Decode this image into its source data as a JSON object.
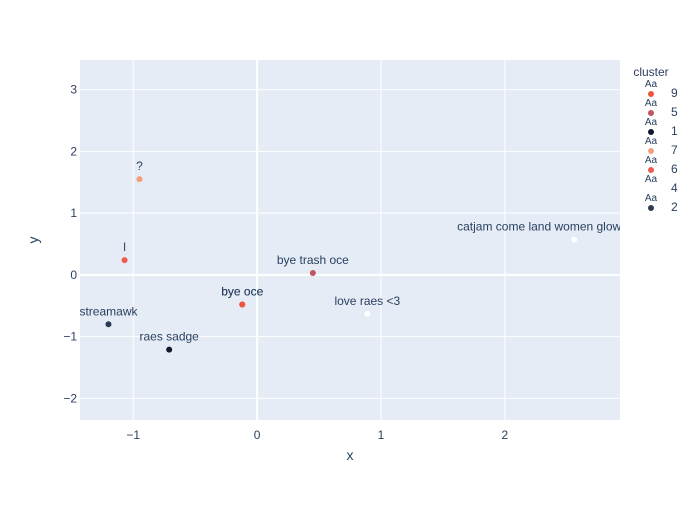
{
  "chart_data": {
    "type": "scatter",
    "title": "",
    "xlabel": "x",
    "ylabel": "y",
    "xlim": [
      -1.43,
      2.93
    ],
    "ylim": [
      -2.35,
      3.48
    ],
    "x_ticks": [
      -1,
      0,
      1,
      2
    ],
    "y_ticks": [
      -2,
      -1,
      0,
      1,
      2,
      3
    ],
    "x_tick_labels": [
      "−1",
      "0",
      "1",
      "2"
    ],
    "y_tick_labels": [
      "−2",
      "−1",
      "0",
      "1",
      "2",
      "3"
    ],
    "grid": true,
    "zeroline": true,
    "legend": {
      "title": "cluster",
      "placement": "right",
      "symbol_text": "Aa",
      "entries": [
        {
          "name": "9",
          "color": "#ef553b"
        },
        {
          "name": "5",
          "color": "#c0575f"
        },
        {
          "name": "1",
          "color": "#0f1b2d"
        },
        {
          "name": "7",
          "color": "#f2a07b"
        },
        {
          "name": "6",
          "color": "#ef5b4f"
        },
        {
          "name": "4",
          "color": "#ffffff"
        },
        {
          "name": "2",
          "color": "#2f3b55"
        }
      ]
    },
    "series": [
      {
        "name": "9",
        "color": "#ef553b",
        "points": [
          {
            "x": -0.12,
            "y": -0.48,
            "label": "bye oce"
          },
          {
            "x": -0.12,
            "y": -0.48,
            "label": "bye oce"
          }
        ]
      },
      {
        "name": "5",
        "color": "#c0575f",
        "points": [
          {
            "x": 0.45,
            "y": 0.03,
            "label": "bye trash oce"
          }
        ]
      },
      {
        "name": "1",
        "color": "#0f1b2d",
        "points": [
          {
            "x": -0.71,
            "y": -1.21,
            "label": "raes sadge"
          }
        ]
      },
      {
        "name": "7",
        "color": "#f2a07b",
        "points": [
          {
            "x": -0.95,
            "y": 1.55,
            "label": "?"
          }
        ]
      },
      {
        "name": "6",
        "color": "#ef5b4f",
        "points": [
          {
            "x": -1.07,
            "y": 0.24,
            "label": "l"
          }
        ]
      },
      {
        "name": "4",
        "color": "#ffffff",
        "points": [
          {
            "x": 2.56,
            "y": 0.57,
            "label": "catjam come land women glow men plunder"
          },
          {
            "x": 0.89,
            "y": -0.63,
            "label": "love raes <3"
          }
        ]
      },
      {
        "name": "2",
        "color": "#2f3b55",
        "points": [
          {
            "x": -1.2,
            "y": -0.8,
            "label": "streamawk"
          }
        ]
      }
    ]
  },
  "colors": {
    "plot_background": "#e5ecf6",
    "grid": "#ffffff",
    "text": "#2a3f5f"
  }
}
